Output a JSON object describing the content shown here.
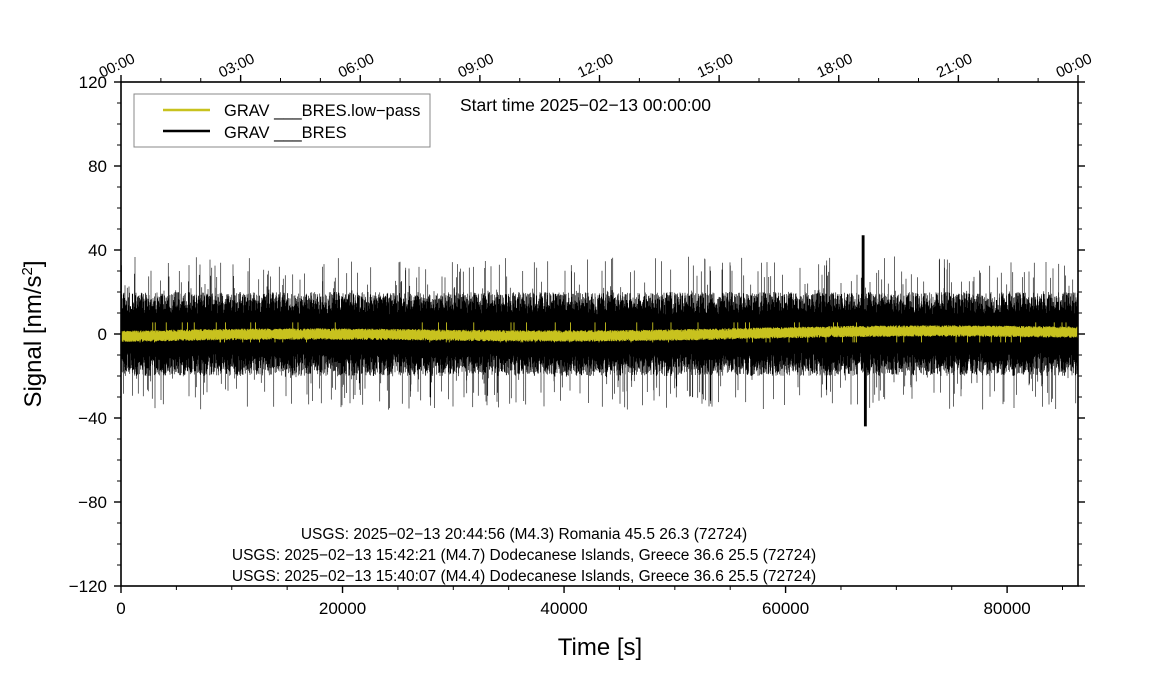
{
  "chart_data": {
    "type": "line",
    "title": "Start time 2025−02−13 00:00:00",
    "xlabel": "Time [s]",
    "ylabel_main": "Signal [nm/s",
    "ylabel_sup": "2",
    "ylabel_tail": "]",
    "xlim": [
      0,
      86400
    ],
    "ylim": [
      -120,
      120
    ],
    "x_ticks": [
      0,
      20000,
      40000,
      60000,
      80000
    ],
    "x_tick_labels": [
      "0",
      "20000",
      "40000",
      "60000",
      "80000"
    ],
    "y_ticks": [
      -120,
      -80,
      -40,
      0,
      40,
      80,
      120
    ],
    "y_tick_labels": [
      "−120",
      "−80",
      "−40",
      "0",
      "40",
      "80",
      "120"
    ],
    "top_ticks": [
      0,
      10800,
      21600,
      32400,
      43200,
      54000,
      64800,
      75600,
      86400
    ],
    "top_tick_labels": [
      "00:00",
      "03:00",
      "06:00",
      "09:00",
      "12:00",
      "15:00",
      "18:00",
      "21:00",
      "00:00"
    ],
    "legend_position": "top-left",
    "series": [
      {
        "name": "GRAV ___BRES.low−pass",
        "color": "#c8c21e",
        "summary": {
          "typical_min": -3,
          "typical_max": 3,
          "peak_max": 5.5,
          "peak_min": -4
        }
      },
      {
        "name": "GRAV ___BRES",
        "color": "#000000",
        "summary": {
          "typical_min": -20,
          "typical_max": 20,
          "peak_max": 47,
          "peak_min": -44,
          "peak_max_at": 67000,
          "peak_min_at": 67200
        }
      }
    ],
    "annotations": [
      "USGS: 2025−02−13 20:44:56 (M4.3) Romania 45.5 26.3 (72724)",
      "USGS: 2025−02−13 15:42:21 (M4.7) Dodecanese Islands, Greece 36.6 25.5 (72724)",
      "USGS: 2025−02−13 15:40:07 (M4.4) Dodecanese Islands, Greece 36.6 25.5 (72724)"
    ]
  }
}
